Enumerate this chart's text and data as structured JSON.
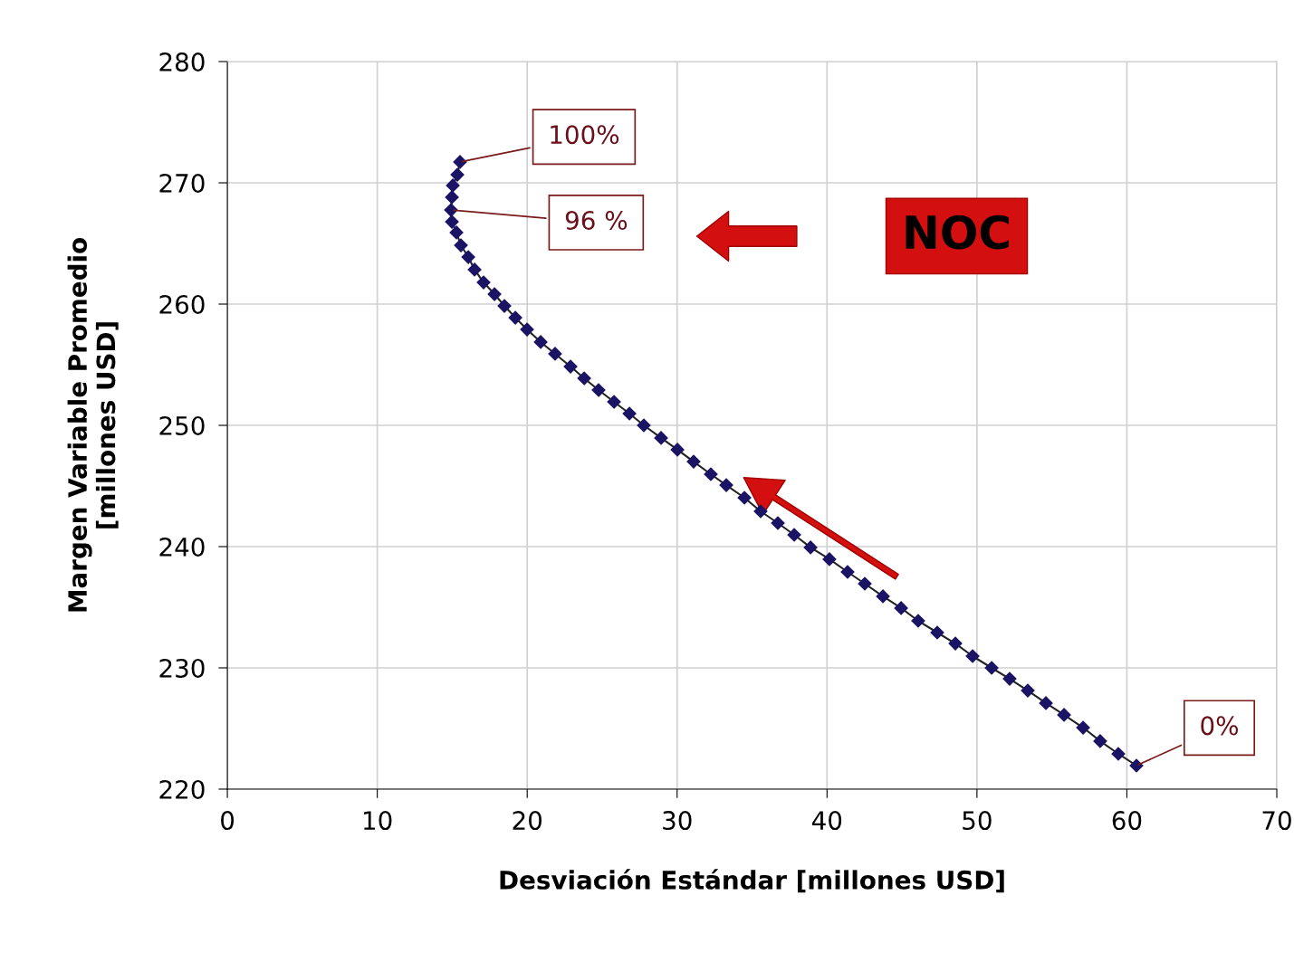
{
  "chart_data": {
    "type": "line",
    "xlabel": "Desviación Estándar [millones USD]",
    "ylabel": "Margen Variable Promedio\n[millones USD]",
    "x": [
      60.64,
      59.43,
      58.22,
      57.08,
      55.81,
      54.6,
      53.39,
      52.18,
      50.98,
      49.71,
      48.56,
      47.35,
      46.08,
      44.94,
      43.73,
      42.52,
      41.37,
      40.16,
      38.9,
      37.81,
      36.72,
      35.57,
      34.49,
      33.28,
      32.25,
      31.1,
      30.02,
      28.93,
      27.78,
      26.82,
      25.79,
      24.76,
      23.8,
      22.89,
      21.86,
      20.9,
      19.99,
      19.21,
      18.48,
      17.82,
      17.09,
      16.49,
      16.07,
      15.58,
      15.28,
      14.98,
      14.92,
      14.98,
      15.04,
      15.34,
      15.52
    ],
    "series": [
      {
        "color": "#1b1464",
        "values": [
          221.94,
          222.91,
          223.96,
          225.07,
          226.12,
          227.09,
          228.13,
          229.1,
          230.0,
          230.97,
          232.01,
          232.91,
          233.88,
          234.93,
          235.9,
          236.94,
          237.91,
          238.96,
          239.93,
          240.97,
          241.94,
          242.91,
          244.03,
          245.07,
          245.97,
          247.01,
          247.99,
          248.96,
          250.0,
          250.97,
          251.94,
          252.91,
          253.88,
          254.85,
          255.9,
          256.87,
          257.91,
          258.88,
          259.85,
          260.82,
          261.79,
          262.84,
          263.88,
          264.85,
          265.9,
          266.79,
          267.76,
          268.81,
          269.78,
          270.67,
          271.72
        ]
      }
    ],
    "marker": "diamond",
    "line_style": "solid",
    "xlim": [
      0,
      70
    ],
    "xticks": [
      0,
      10,
      20,
      30,
      40,
      50,
      60,
      70
    ],
    "ylim": [
      220,
      280
    ],
    "yticks": [
      220,
      230,
      240,
      250,
      260,
      270,
      280
    ],
    "grid": true,
    "annotations": [
      {
        "text": "100%",
        "x": 15.52,
        "y": 271.72
      },
      {
        "text": "96 %",
        "x": 14.92,
        "y": 267.76
      },
      {
        "text": "0%",
        "x": 60.64,
        "y": 221.94
      },
      "NOC"
    ]
  }
}
